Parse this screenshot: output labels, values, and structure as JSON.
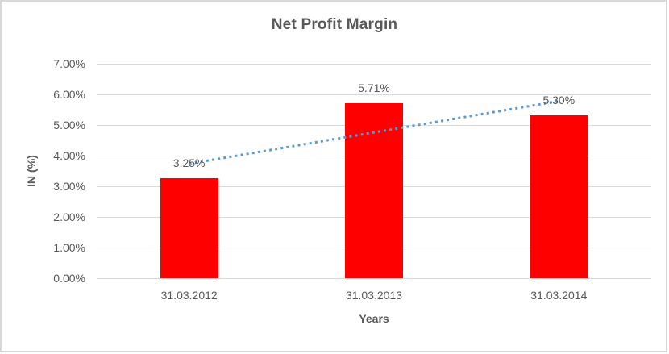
{
  "chart_data": {
    "type": "bar",
    "title": "Net Profit Margin",
    "xlabel": "Years",
    "ylabel": "IN (%)",
    "categories": [
      "31.03.2012",
      "31.03.2013",
      "31.03.2014"
    ],
    "values": [
      3.25,
      5.71,
      5.3
    ],
    "data_labels": [
      "3.25%",
      "5.71%",
      "5.30%"
    ],
    "ylim": [
      0,
      7
    ],
    "ytick_labels": [
      "0.00%",
      "1.00%",
      "2.00%",
      "3.00%",
      "4.00%",
      "5.00%",
      "6.00%",
      "7.00%"
    ],
    "gridlines": true,
    "legend_position": "none",
    "trendline": {
      "type": "linear",
      "style": "dotted",
      "color": "#5b9bd5"
    },
    "colors": {
      "bar": "#ff0000",
      "grid": "#d9d9d9",
      "text": "#595959",
      "frame_border": "#d8d8d8",
      "background": "#ffffff"
    }
  }
}
